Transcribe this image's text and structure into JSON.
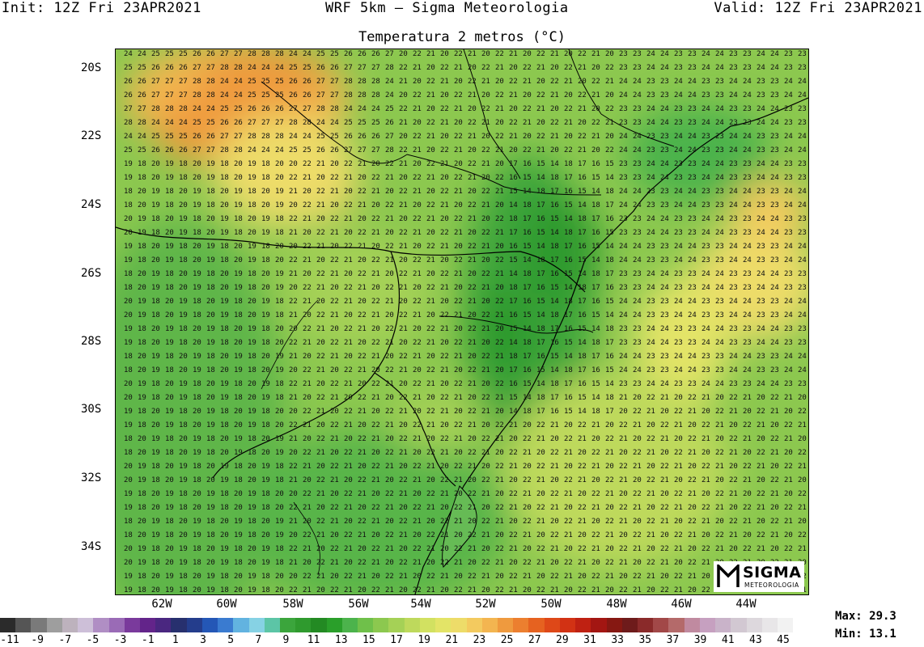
{
  "header": {
    "init": "Init: 12Z Fri 23APR2021",
    "model": "WRF 5km – Sigma Meteorologia",
    "valid": "Valid: 12Z Fri 23APR2021"
  },
  "map": {
    "title": "Temperatura 2 metros (°C)",
    "lat_labels": [
      "20S",
      "22S",
      "24S",
      "26S",
      "28S",
      "30S",
      "32S",
      "34S"
    ],
    "lon_labels": [
      "62W",
      "60W",
      "58W",
      "56W",
      "54W",
      "52W",
      "50W",
      "48W",
      "46W",
      "44W"
    ],
    "sample_values": [
      "24",
      "25",
      "26",
      "27",
      "28",
      "22",
      "21",
      "20",
      "19",
      "18",
      "17",
      "16",
      "15",
      "14",
      "23"
    ]
  },
  "colorbar": {
    "labels": [
      "-11",
      "-9",
      "-7",
      "-5",
      "-3",
      "-1",
      "1",
      "3",
      "5",
      "7",
      "9",
      "11",
      "13",
      "15",
      "17",
      "19",
      "21",
      "23",
      "25",
      "27",
      "29",
      "31",
      "33",
      "35",
      "37",
      "39",
      "41",
      "43",
      "45"
    ],
    "colors": [
      "#2b2b2b",
      "#555555",
      "#7a7a7a",
      "#9e9e9e",
      "#bdb2bd",
      "#cdbfd8",
      "#b08ec4",
      "#9a6bb6",
      "#7a3a9c",
      "#63248a",
      "#4a2780",
      "#27306e",
      "#243d8c",
      "#2457b6",
      "#3a7bd0",
      "#62b3e0",
      "#86d2e4",
      "#5cc5a6",
      "#3ba53c",
      "#2f9a2e",
      "#238a23",
      "#2a9f2a",
      "#4cb34c",
      "#6fc04a",
      "#8cc84f",
      "#a5d156",
      "#bed95c",
      "#d2e161",
      "#e3e467",
      "#eddc69",
      "#f3ca5f",
      "#f3b550",
      "#ef9a3e",
      "#ec7f2f",
      "#e66220",
      "#de4818",
      "#d23214",
      "#bf2112",
      "#a31612",
      "#861812",
      "#6e1b1b",
      "#8a2a2a",
      "#a24848",
      "#b46a6a",
      "#c08aa0",
      "#c6a0c0",
      "#c9b3c9",
      "#d2c8d2",
      "#ddd8dd",
      "#e8e6e8",
      "#f2f2f2"
    ]
  },
  "stats": {
    "max": "Max: 29.3",
    "min": "Min: 13.1"
  },
  "logo": {
    "word": "SIGMA",
    "sub": "METEOROLOGIA"
  }
}
